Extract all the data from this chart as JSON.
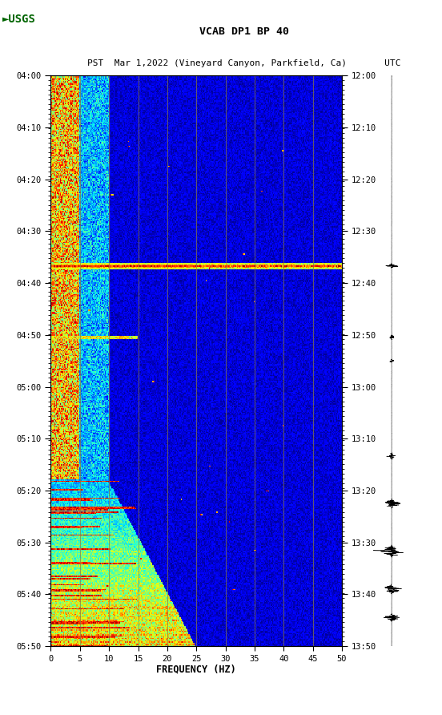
{
  "title_line1": "VCAB DP1 BP 40",
  "title_line2": "PST  Mar 1,2022 (Vineyard Canyon, Parkfield, Ca)       UTC",
  "xlabel": "FREQUENCY (HZ)",
  "freq_min": 0,
  "freq_max": 50,
  "freq_ticks": [
    0,
    5,
    10,
    15,
    20,
    25,
    30,
    35,
    40,
    45,
    50
  ],
  "left_yticks_labels": [
    "04:00",
    "04:10",
    "04:20",
    "04:30",
    "04:40",
    "04:50",
    "05:00",
    "05:10",
    "05:20",
    "05:30",
    "05:40",
    "05:50"
  ],
  "right_yticks_labels": [
    "12:00",
    "12:10",
    "12:20",
    "12:30",
    "12:40",
    "12:50",
    "13:00",
    "13:10",
    "13:20",
    "13:30",
    "13:40",
    "13:50"
  ],
  "n_time_steps": 480,
  "n_freq_steps": 300,
  "vertical_lines_freq": [
    5,
    10,
    15,
    20,
    25,
    30,
    35,
    40,
    45
  ],
  "vertical_line_color": "#8B7D40",
  "spectrogram_cmap": "jet",
  "background_color": "#ffffff"
}
